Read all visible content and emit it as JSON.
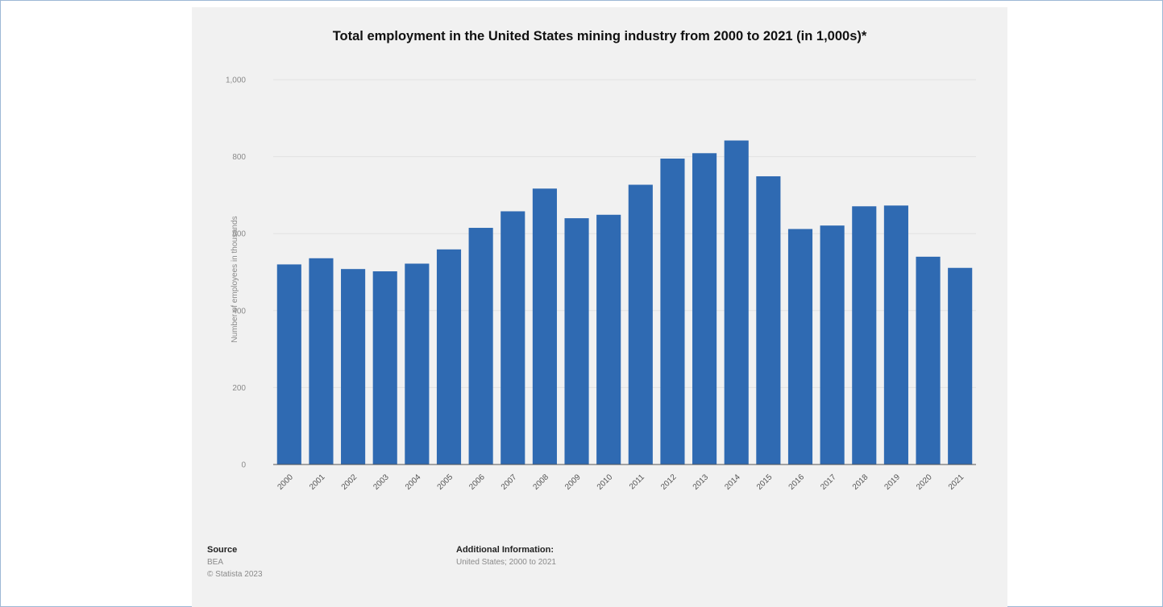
{
  "chart_data": {
    "type": "bar",
    "title": "Total employment in the United States mining industry from 2000 to 2021 (in 1,000s)*",
    "xlabel": "",
    "ylabel": "Number of employees in thousands",
    "categories": [
      "2000",
      "2001",
      "2002",
      "2003",
      "2004",
      "2005",
      "2006",
      "2007",
      "2008",
      "2009",
      "2010",
      "2011",
      "2012",
      "2013",
      "2014",
      "2015",
      "2016",
      "2017",
      "2018",
      "2019",
      "2020",
      "2021"
    ],
    "values": [
      520,
      536,
      508,
      502,
      522,
      559,
      615,
      658,
      717,
      640,
      649,
      727,
      795,
      809,
      842,
      749,
      612,
      621,
      671,
      673,
      540,
      511
    ],
    "ylim": [
      0,
      1000
    ],
    "yticks": [
      0,
      200,
      400,
      600,
      800,
      1000
    ],
    "ytick_labels": [
      "0",
      "200",
      "400",
      "600",
      "800",
      "1,000"
    ],
    "grid": true,
    "bar_color": "#2f6ab2"
  },
  "footer": {
    "source_heading": "Source",
    "source_name": "BEA",
    "copyright": "© Statista 2023",
    "additional_heading": "Additional Information:",
    "additional_text": "United States; 2000 to 2021"
  }
}
